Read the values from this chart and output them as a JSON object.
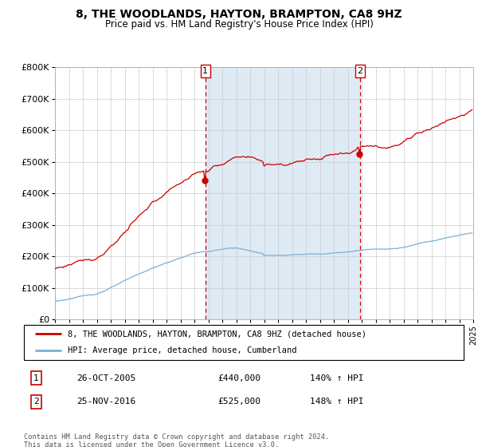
{
  "title": "8, THE WOODLANDS, HAYTON, BRAMPTON, CA8 9HZ",
  "subtitle": "Price paid vs. HM Land Registry's House Price Index (HPI)",
  "legend_line1": "8, THE WOODLANDS, HAYTON, BRAMPTON, CA8 9HZ (detached house)",
  "legend_line2": "HPI: Average price, detached house, Cumberland",
  "transaction1_label": "1",
  "transaction1_date": "26-OCT-2005",
  "transaction1_price": "£440,000",
  "transaction1_hpi": "140% ↑ HPI",
  "transaction1_year": 2005.79,
  "transaction1_value": 440000,
  "transaction2_label": "2",
  "transaction2_date": "25-NOV-2016",
  "transaction2_price": "£525,000",
  "transaction2_hpi": "148% ↑ HPI",
  "transaction2_year": 2016.88,
  "transaction2_value": 525000,
  "footer_line1": "Contains HM Land Registry data © Crown copyright and database right 2024.",
  "footer_line2": "This data is licensed under the Open Government Licence v3.0.",
  "red_color": "#cc0000",
  "blue_color": "#7bafd4",
  "bg_shade_color": "#deeaf4",
  "ylim_min": 0,
  "ylim_max": 800000,
  "xlim_min": 1995,
  "xlim_max": 2025,
  "ytick_values": [
    0,
    100000,
    200000,
    300000,
    400000,
    500000,
    600000,
    700000,
    800000
  ],
  "ytick_labels": [
    "£0",
    "£100K",
    "£200K",
    "£300K",
    "£400K",
    "£500K",
    "£600K",
    "£700K",
    "£800K"
  ]
}
